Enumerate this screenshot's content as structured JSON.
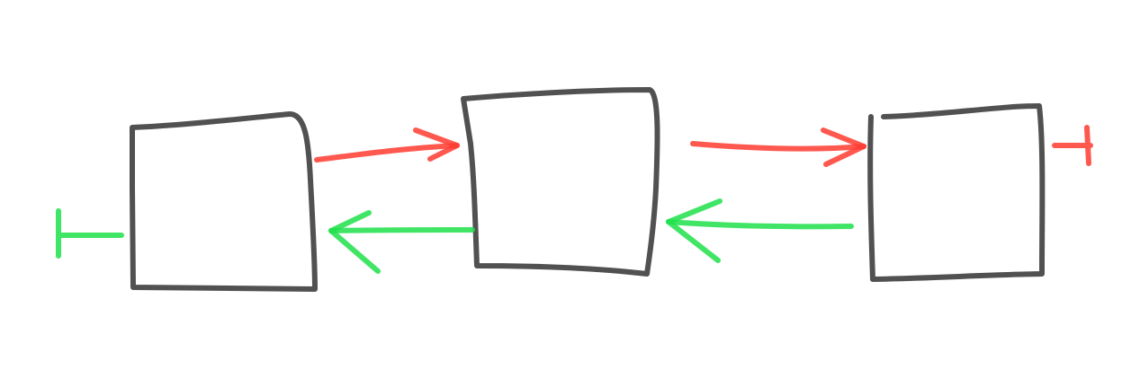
{
  "diagram": {
    "colors": {
      "box": "#333333",
      "forward": "#ff3b30",
      "backward": "#1ee04a"
    },
    "nodes": [
      {
        "id": "node-1"
      },
      {
        "id": "node-2"
      },
      {
        "id": "node-3"
      }
    ],
    "forward_arrows": [
      {
        "from": "node-1",
        "to": "node-2"
      },
      {
        "from": "node-2",
        "to": "node-3"
      }
    ],
    "backward_arrows": [
      {
        "from": "node-3",
        "to": "node-2"
      },
      {
        "from": "node-2",
        "to": "node-1"
      }
    ],
    "terminators": [
      {
        "attached_to": "node-3",
        "direction": "forward",
        "icon": "terminator-bar-icon"
      },
      {
        "attached_to": "node-1",
        "direction": "backward",
        "icon": "terminator-bar-icon"
      }
    ]
  }
}
